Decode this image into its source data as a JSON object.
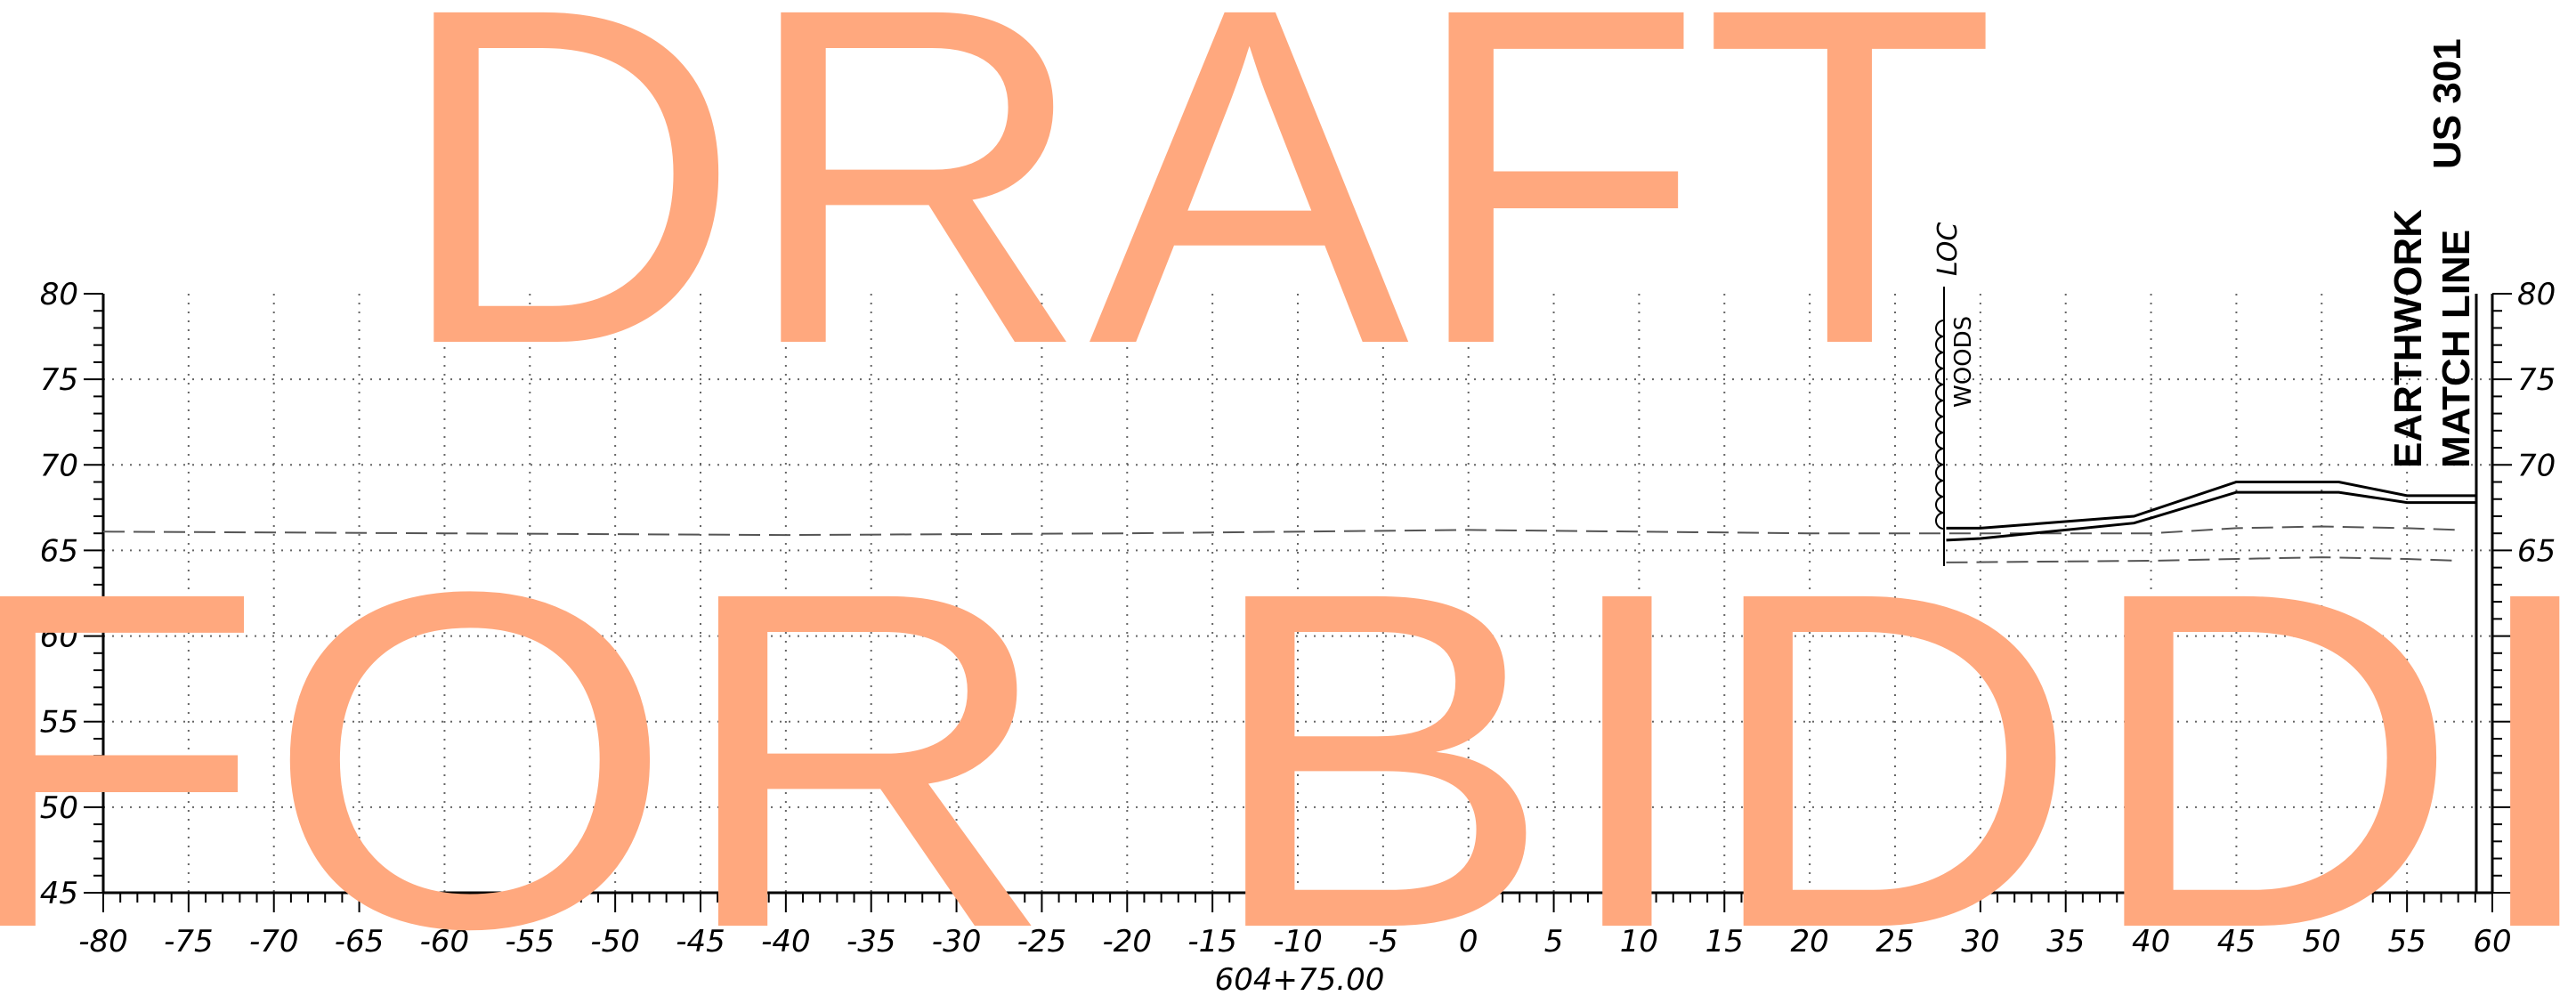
{
  "diagram": {
    "station_label": "604+75.00",
    "x_axis": {
      "min": -80,
      "max": 60,
      "step": 5
    },
    "y_axis": {
      "min": 45,
      "max": 80,
      "step": 5
    },
    "labels": {
      "loc": "LOC",
      "woods": "WOODS",
      "match_line": [
        "EARTHWORK",
        "MATCH LINE",
        "US 301"
      ]
    },
    "watermark": {
      "line1": "DRAFT",
      "line2": "FOR BIDDI",
      "color": "#FFA87E"
    },
    "existing_ground": [
      [
        -80,
        66.1
      ],
      [
        -60,
        66.0
      ],
      [
        -40,
        65.9
      ],
      [
        -20,
        66.0
      ],
      [
        0,
        66.2
      ],
      [
        10,
        66.1
      ],
      [
        20,
        66.0
      ],
      [
        28,
        66.0
      ],
      [
        40,
        66.0
      ],
      [
        45,
        66.3
      ],
      [
        50,
        66.4
      ],
      [
        55,
        66.3
      ],
      [
        58,
        66.2
      ]
    ],
    "ditch_line": [
      [
        28,
        64.3
      ],
      [
        40,
        64.4
      ],
      [
        45,
        64.5
      ],
      [
        50,
        64.6
      ],
      [
        55,
        64.5
      ],
      [
        58,
        64.4
      ]
    ],
    "proposed_top": [
      [
        28,
        66.3
      ],
      [
        30,
        66.3
      ],
      [
        39,
        67.0
      ],
      [
        45,
        69.0
      ],
      [
        51,
        69.0
      ],
      [
        55,
        68.2
      ],
      [
        59,
        68.2
      ]
    ],
    "proposed_bottom": [
      [
        28,
        65.6
      ],
      [
        30,
        65.7
      ],
      [
        39,
        66.6
      ],
      [
        45,
        68.4
      ],
      [
        51,
        68.4
      ],
      [
        55,
        67.8
      ],
      [
        59,
        67.8
      ]
    ]
  }
}
